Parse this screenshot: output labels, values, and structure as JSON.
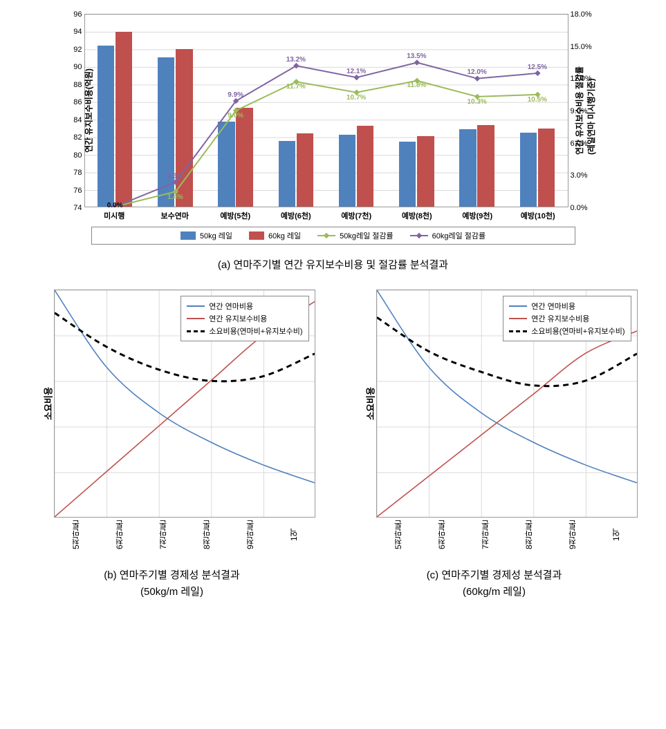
{
  "chart_a": {
    "type": "bar+line",
    "y_left": {
      "min": 74,
      "max": 96,
      "step": 2,
      "title": "연간 유지보수비용(억원)",
      "label_fontsize": 12
    },
    "y_right": {
      "min": 0,
      "max": 18,
      "step": 3,
      "title": "연간 유지보수비용 절감률\n(레일연마 미시행기준)",
      "fmt_suffix": "%",
      "label_fontsize": 12
    },
    "categories": [
      "미시행",
      "보수연마",
      "예방(5천)",
      "예방(6천)",
      "예방(7천)",
      "예방(8천)",
      "예방(9천)",
      "예방(10천)"
    ],
    "bars": {
      "series": [
        {
          "name": "50kg 레일",
          "color": "#4f81bd",
          "values": [
            92.3,
            91.0,
            83.7,
            81.5,
            82.2,
            81.4,
            82.8,
            82.4
          ]
        },
        {
          "name": "60kg 레일",
          "color": "#c0504d",
          "values": [
            93.9,
            91.9,
            85.2,
            82.3,
            83.2,
            82.0,
            83.3,
            82.9
          ]
        }
      ],
      "bar_width_frac": 0.28,
      "gap_frac": 0.02
    },
    "lines": {
      "series": [
        {
          "name": "50kg레일 절감률",
          "color": "#9bbb59",
          "marker": "diamond",
          "values": [
            0.0,
            1.4,
            9.0,
            11.7,
            10.7,
            11.8,
            10.3,
            10.5
          ]
        },
        {
          "name": "60kg레일 절감률",
          "color": "#8064a2",
          "marker": "diamond",
          "values": [
            0.0,
            2.3,
            9.9,
            13.2,
            12.1,
            13.5,
            12.0,
            12.5
          ]
        }
      ],
      "marker_size": 6,
      "line_width": 2,
      "label_fontsize": 10,
      "label_suffix": "%"
    },
    "grid_color": "#d9d9d9",
    "background_color": "#ffffff",
    "legend_labels": {
      "bar1": "50kg 레일",
      "bar2": "60kg 레일",
      "line1": "50kg레일 절감률",
      "line2": "60kg레일 절감률"
    }
  },
  "caption_a": "(a) 연마주기별 연간 유지보수비용 및 절감률 분석결과",
  "bc_common": {
    "y_title": "소요비용",
    "x_categories": [
      "5천만톤",
      "6천만톤",
      "7천만톤",
      "8천만톤",
      "9천만톤",
      "1억"
    ],
    "legend": {
      "annual_grinding": "연간 연마비용",
      "annual_maint": "연간 유지보수비용",
      "total": "소요비용(연마비+유지보수비)"
    },
    "colors": {
      "annual_grinding": "#4f81bd",
      "annual_maint": "#c0504d",
      "total": "#000000"
    },
    "line_width": 1.6,
    "total_line_width": 3,
    "grid_color": "#d9d9d9"
  },
  "chart_b": {
    "type": "line",
    "y_range": [
      0,
      100
    ],
    "series": {
      "annual_grinding": [
        100,
        66,
        46,
        33,
        23,
        15
      ],
      "annual_maint": [
        0,
        20,
        40,
        60,
        80,
        95
      ],
      "total": [
        90,
        75,
        65,
        60,
        62,
        72
      ]
    }
  },
  "chart_c": {
    "type": "line",
    "y_range": [
      0,
      100
    ],
    "series": {
      "annual_grinding": [
        100,
        66,
        46,
        33,
        23,
        15
      ],
      "annual_maint": [
        0,
        18,
        36,
        54,
        72,
        82
      ],
      "total": [
        88,
        73,
        64,
        58,
        60,
        72
      ]
    }
  },
  "caption_b_1": "(b) 연마주기별 경제성 분석결과",
  "caption_b_2": "(50kg/m 레일)",
  "caption_c_1": "(c) 연마주기별 경제성 분석결과",
  "caption_c_2": "(60kg/m 레일)"
}
